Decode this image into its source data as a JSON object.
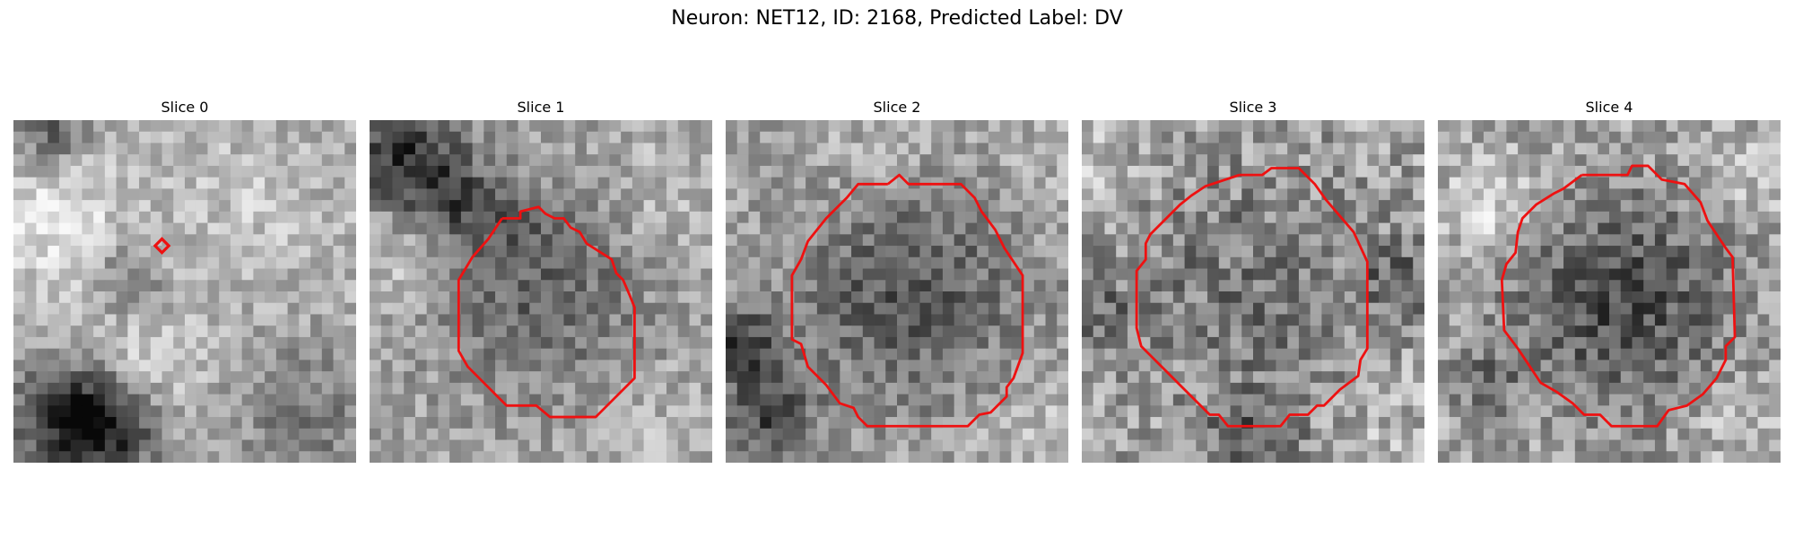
{
  "figure": {
    "title": "Neuron: NET12, ID: 2168, Predicted Label: DV"
  },
  "panels": [
    {
      "title": "Slice 0"
    },
    {
      "title": "Slice 1"
    },
    {
      "title": "Slice 2"
    },
    {
      "title": "Slice 3"
    },
    {
      "title": "Slice 4"
    }
  ],
  "colors": {
    "contour": "#ee1111"
  }
}
